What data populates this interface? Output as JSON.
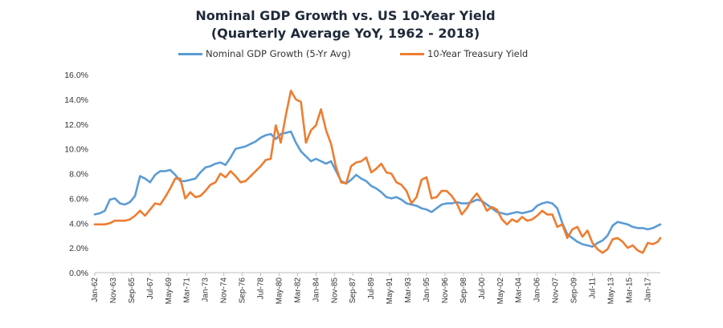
{
  "chart_data": {
    "type": "line",
    "title": "Nominal GDP Growth vs. US 10-Year Yield",
    "subtitle": "(Quarterly Average YoY, 1962 - 2018)",
    "xlabel": "",
    "ylabel": "",
    "ylim": [
      0,
      16
    ],
    "y_ticks": [
      "0.0%",
      "2.0%",
      "4.0%",
      "6.0%",
      "8.0%",
      "10.0%",
      "12.0%",
      "14.0%",
      "16.0%"
    ],
    "x_tick_labels": [
      "Jan-62",
      "Nov-63",
      "Sep-65",
      "Jul-67",
      "May-69",
      "Mar-71",
      "Jan-73",
      "Nov-74",
      "Sep-76",
      "Jul-78",
      "May-80",
      "Mar-82",
      "Jan-84",
      "Nov-85",
      "Sep-87",
      "Jul-89",
      "May-91",
      "Mar-93",
      "Jan-95",
      "Nov-96",
      "Sep-98",
      "Jul-00",
      "May-02",
      "Mar-04",
      "Jan-06",
      "Nov-07",
      "Sep-09",
      "Jul-11",
      "May-13",
      "Mar-15",
      "Jan-17"
    ],
    "x_range": [
      1962.0,
      2018.25
    ],
    "grid": false,
    "legend_position": "top",
    "series": [
      {
        "name": "Nominal GDP Growth (5-Yr Avg)",
        "color": "#5b9bd5",
        "points": [
          [
            1962.0,
            4.7
          ],
          [
            1962.5,
            4.8
          ],
          [
            1963.0,
            5.0
          ],
          [
            1963.5,
            5.9
          ],
          [
            1964.0,
            6.0
          ],
          [
            1964.5,
            5.6
          ],
          [
            1965.0,
            5.5
          ],
          [
            1965.5,
            5.7
          ],
          [
            1966.0,
            6.2
          ],
          [
            1966.5,
            7.8
          ],
          [
            1967.0,
            7.6
          ],
          [
            1967.5,
            7.3
          ],
          [
            1968.0,
            7.9
          ],
          [
            1968.5,
            8.2
          ],
          [
            1969.0,
            8.2
          ],
          [
            1969.5,
            8.3
          ],
          [
            1970.0,
            7.9
          ],
          [
            1970.5,
            7.4
          ],
          [
            1971.0,
            7.4
          ],
          [
            1971.5,
            7.5
          ],
          [
            1972.0,
            7.6
          ],
          [
            1972.5,
            8.1
          ],
          [
            1973.0,
            8.5
          ],
          [
            1973.5,
            8.6
          ],
          [
            1974.0,
            8.8
          ],
          [
            1974.5,
            8.9
          ],
          [
            1975.0,
            8.7
          ],
          [
            1975.5,
            9.3
          ],
          [
            1976.0,
            10.0
          ],
          [
            1976.5,
            10.1
          ],
          [
            1977.0,
            10.2
          ],
          [
            1977.5,
            10.4
          ],
          [
            1978.0,
            10.6
          ],
          [
            1978.5,
            10.9
          ],
          [
            1979.0,
            11.1
          ],
          [
            1979.5,
            11.2
          ],
          [
            1980.0,
            10.8
          ],
          [
            1980.5,
            11.2
          ],
          [
            1981.0,
            11.3
          ],
          [
            1981.5,
            11.4
          ],
          [
            1982.0,
            10.5
          ],
          [
            1982.5,
            9.8
          ],
          [
            1983.0,
            9.4
          ],
          [
            1983.5,
            9.0
          ],
          [
            1984.0,
            9.2
          ],
          [
            1984.5,
            9.0
          ],
          [
            1985.0,
            8.8
          ],
          [
            1985.5,
            9.0
          ],
          [
            1986.0,
            8.2
          ],
          [
            1986.5,
            7.4
          ],
          [
            1987.0,
            7.2
          ],
          [
            1987.5,
            7.5
          ],
          [
            1988.0,
            7.9
          ],
          [
            1988.5,
            7.6
          ],
          [
            1989.0,
            7.4
          ],
          [
            1989.5,
            7.0
          ],
          [
            1990.0,
            6.8
          ],
          [
            1990.5,
            6.5
          ],
          [
            1991.0,
            6.1
          ],
          [
            1991.5,
            6.0
          ],
          [
            1992.0,
            6.1
          ],
          [
            1992.5,
            5.9
          ],
          [
            1993.0,
            5.6
          ],
          [
            1993.5,
            5.5
          ],
          [
            1994.0,
            5.4
          ],
          [
            1994.5,
            5.2
          ],
          [
            1995.0,
            5.1
          ],
          [
            1995.5,
            4.9
          ],
          [
            1996.0,
            5.2
          ],
          [
            1996.5,
            5.5
          ],
          [
            1997.0,
            5.6
          ],
          [
            1997.5,
            5.6
          ],
          [
            1998.0,
            5.7
          ],
          [
            1998.5,
            5.6
          ],
          [
            1999.0,
            5.6
          ],
          [
            1999.5,
            5.7
          ],
          [
            2000.0,
            5.9
          ],
          [
            2000.5,
            5.8
          ],
          [
            2001.0,
            5.5
          ],
          [
            2001.5,
            5.2
          ],
          [
            2002.0,
            4.9
          ],
          [
            2002.5,
            4.8
          ],
          [
            2003.0,
            4.7
          ],
          [
            2003.5,
            4.8
          ],
          [
            2004.0,
            4.9
          ],
          [
            2004.5,
            4.8
          ],
          [
            2005.0,
            4.9
          ],
          [
            2005.5,
            5.0
          ],
          [
            2006.0,
            5.4
          ],
          [
            2006.5,
            5.6
          ],
          [
            2007.0,
            5.7
          ],
          [
            2007.5,
            5.6
          ],
          [
            2008.0,
            5.2
          ],
          [
            2008.5,
            4.0
          ],
          [
            2009.0,
            3.1
          ],
          [
            2009.5,
            2.8
          ],
          [
            2010.0,
            2.5
          ],
          [
            2010.5,
            2.3
          ],
          [
            2011.0,
            2.2
          ],
          [
            2011.5,
            2.1
          ],
          [
            2012.0,
            2.4
          ],
          [
            2012.5,
            2.6
          ],
          [
            2013.0,
            3.0
          ],
          [
            2013.5,
            3.8
          ],
          [
            2014.0,
            4.1
          ],
          [
            2014.5,
            4.0
          ],
          [
            2015.0,
            3.9
          ],
          [
            2015.5,
            3.7
          ],
          [
            2016.0,
            3.6
          ],
          [
            2016.5,
            3.6
          ],
          [
            2017.0,
            3.5
          ],
          [
            2017.5,
            3.6
          ],
          [
            2018.0,
            3.8
          ],
          [
            2018.25,
            3.9
          ]
        ]
      },
      {
        "name": "10-Year Treasury Yield",
        "color": "#ed7d31",
        "points": [
          [
            1962.0,
            3.9
          ],
          [
            1962.5,
            3.9
          ],
          [
            1963.0,
            3.9
          ],
          [
            1963.5,
            4.0
          ],
          [
            1964.0,
            4.2
          ],
          [
            1964.5,
            4.2
          ],
          [
            1965.0,
            4.2
          ],
          [
            1965.5,
            4.3
          ],
          [
            1966.0,
            4.6
          ],
          [
            1966.5,
            5.0
          ],
          [
            1967.0,
            4.6
          ],
          [
            1967.5,
            5.1
          ],
          [
            1968.0,
            5.6
          ],
          [
            1968.5,
            5.5
          ],
          [
            1969.0,
            6.1
          ],
          [
            1969.5,
            6.8
          ],
          [
            1970.0,
            7.6
          ],
          [
            1970.5,
            7.6
          ],
          [
            1971.0,
            6.0
          ],
          [
            1971.5,
            6.5
          ],
          [
            1972.0,
            6.1
          ],
          [
            1972.5,
            6.2
          ],
          [
            1973.0,
            6.6
          ],
          [
            1973.5,
            7.1
          ],
          [
            1974.0,
            7.3
          ],
          [
            1974.5,
            8.0
          ],
          [
            1975.0,
            7.7
          ],
          [
            1975.5,
            8.2
          ],
          [
            1976.0,
            7.8
          ],
          [
            1976.5,
            7.3
          ],
          [
            1977.0,
            7.4
          ],
          [
            1977.5,
            7.8
          ],
          [
            1978.0,
            8.2
          ],
          [
            1978.5,
            8.6
          ],
          [
            1979.0,
            9.1
          ],
          [
            1979.5,
            9.2
          ],
          [
            1980.0,
            11.9
          ],
          [
            1980.5,
            10.5
          ],
          [
            1981.0,
            12.7
          ],
          [
            1981.5,
            14.7
          ],
          [
            1982.0,
            14.0
          ],
          [
            1982.5,
            13.8
          ],
          [
            1983.0,
            10.5
          ],
          [
            1983.5,
            11.5
          ],
          [
            1984.0,
            11.9
          ],
          [
            1984.5,
            13.2
          ],
          [
            1985.0,
            11.5
          ],
          [
            1985.5,
            10.4
          ],
          [
            1986.0,
            8.5
          ],
          [
            1986.5,
            7.3
          ],
          [
            1987.0,
            7.2
          ],
          [
            1987.5,
            8.6
          ],
          [
            1988.0,
            8.9
          ],
          [
            1988.5,
            9.0
          ],
          [
            1989.0,
            9.3
          ],
          [
            1989.5,
            8.1
          ],
          [
            1990.0,
            8.4
          ],
          [
            1990.5,
            8.8
          ],
          [
            1991.0,
            8.1
          ],
          [
            1991.5,
            8.0
          ],
          [
            1992.0,
            7.3
          ],
          [
            1992.5,
            7.1
          ],
          [
            1993.0,
            6.6
          ],
          [
            1993.5,
            5.6
          ],
          [
            1994.0,
            6.1
          ],
          [
            1994.5,
            7.5
          ],
          [
            1995.0,
            7.7
          ],
          [
            1995.5,
            6.0
          ],
          [
            1996.0,
            6.1
          ],
          [
            1996.5,
            6.6
          ],
          [
            1997.0,
            6.6
          ],
          [
            1997.5,
            6.2
          ],
          [
            1998.0,
            5.6
          ],
          [
            1998.5,
            4.7
          ],
          [
            1999.0,
            5.2
          ],
          [
            1999.5,
            5.9
          ],
          [
            2000.0,
            6.4
          ],
          [
            2000.5,
            5.8
          ],
          [
            2001.0,
            5.0
          ],
          [
            2001.5,
            5.3
          ],
          [
            2002.0,
            5.1
          ],
          [
            2002.5,
            4.3
          ],
          [
            2003.0,
            3.9
          ],
          [
            2003.5,
            4.3
          ],
          [
            2004.0,
            4.1
          ],
          [
            2004.5,
            4.5
          ],
          [
            2005.0,
            4.2
          ],
          [
            2005.5,
            4.3
          ],
          [
            2006.0,
            4.6
          ],
          [
            2006.5,
            5.0
          ],
          [
            2007.0,
            4.7
          ],
          [
            2007.5,
            4.7
          ],
          [
            2008.0,
            3.7
          ],
          [
            2008.5,
            3.9
          ],
          [
            2009.0,
            2.8
          ],
          [
            2009.5,
            3.5
          ],
          [
            2010.0,
            3.7
          ],
          [
            2010.5,
            2.9
          ],
          [
            2011.0,
            3.4
          ],
          [
            2011.5,
            2.4
          ],
          [
            2012.0,
            1.9
          ],
          [
            2012.5,
            1.6
          ],
          [
            2013.0,
            1.9
          ],
          [
            2013.5,
            2.7
          ],
          [
            2014.0,
            2.8
          ],
          [
            2014.5,
            2.5
          ],
          [
            2015.0,
            2.0
          ],
          [
            2015.5,
            2.2
          ],
          [
            2016.0,
            1.8
          ],
          [
            2016.5,
            1.6
          ],
          [
            2017.0,
            2.4
          ],
          [
            2017.5,
            2.3
          ],
          [
            2018.0,
            2.5
          ],
          [
            2018.25,
            2.8
          ]
        ]
      }
    ]
  }
}
